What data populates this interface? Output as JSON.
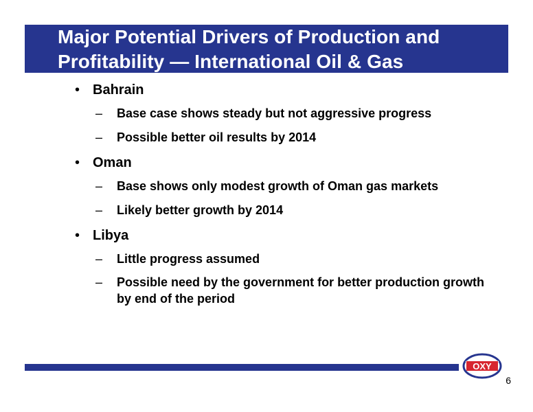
{
  "slide": {
    "title": "Major Potential Drivers of Production and Profitability — International Oil & Gas",
    "bullets": [
      {
        "label": "Bahrain",
        "subs": [
          "Base case shows steady but not aggressive progress",
          "Possible better oil results by 2014"
        ]
      },
      {
        "label": "Oman",
        "subs": [
          "Base shows only modest growth of Oman gas markets",
          "Likely better growth by 2014"
        ]
      },
      {
        "label": "Libya",
        "subs": [
          "Little progress assumed",
          "Possible need by the government for better production growth by end of the period"
        ]
      }
    ],
    "bullet_glyph": "•",
    "dash_glyph": "–",
    "page_number": "6"
  },
  "logo": {
    "text": "OXY",
    "icon": "oxy-logo-icon",
    "colors": {
      "red": "#d7262f",
      "blue": "#26358f"
    }
  },
  "colors": {
    "title_bar": "#26358f",
    "footer_bar": "#26358f",
    "title_text": "#ffffff"
  }
}
